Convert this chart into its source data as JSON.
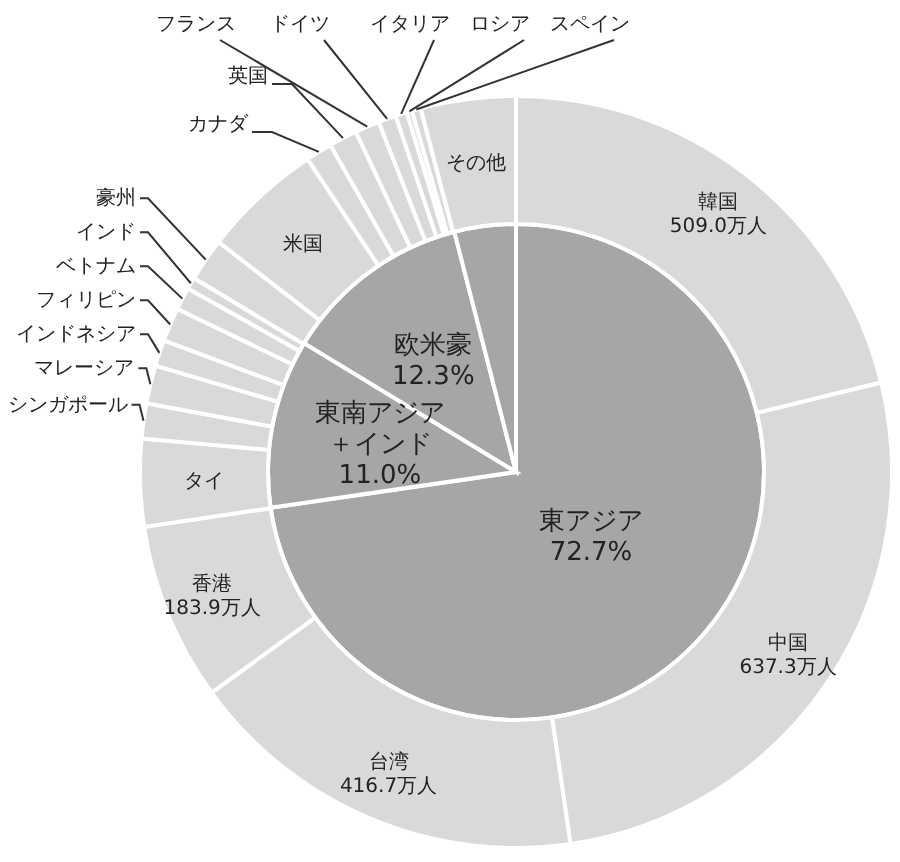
{
  "chart_data": [
    {
      "type": "pie",
      "categories": [
        "東アジア",
        "東南アジア＋インド",
        "欧米豪",
        null
      ],
      "values": [
        72.7,
        11.0,
        12.3,
        4.0
      ],
      "colors": [
        "#a6a6a6",
        "#a6a6a6",
        "#a6a6a6",
        "#a6a6a6"
      ],
      "value_labels": [
        "72.7%",
        "11.0%",
        "12.3%",
        null
      ]
    },
    {
      "type": "donut",
      "categories": [
        "韓国",
        "中国",
        "台湾",
        "香港",
        "タイ",
        "シンガポール",
        "マレーシア",
        "インドネシア",
        "フィリピン",
        "ベトナム",
        "インド",
        "豪州",
        "米国",
        "カナダ",
        "英国",
        "フランス",
        "ドイツ",
        "イタリア",
        "ロシア",
        "スペイン",
        "その他"
      ],
      "values": [
        509.0,
        637.3,
        416.7,
        183.9,
        90.2,
        36.2,
        39.4,
        27.1,
        34.8,
        23.4,
        12.3,
        44.5,
        124.3,
        27.3,
        29.2,
        25.3,
        18.3,
        11.9,
        5.5,
        9.2,
        98.1
      ],
      "colors": [
        "#d9d9d9",
        "#d9d9d9",
        "#d9d9d9",
        "#d9d9d9",
        "#d9d9d9",
        "#d9d9d9",
        "#d9d9d9",
        "#d9d9d9",
        "#d9d9d9",
        "#d9d9d9",
        "#d9d9d9",
        "#d9d9d9",
        "#d9d9d9",
        "#d9d9d9",
        "#d9d9d9",
        "#d9d9d9",
        "#d9d9d9",
        "#d9d9d9",
        "#d9d9d9",
        "#d9d9d9",
        "#d9d9d9"
      ],
      "value_labels": [
        "509.0万人",
        "637.3万人",
        "416.7万人",
        "183.9万人",
        null,
        null,
        null,
        null,
        null,
        null,
        null,
        null,
        null,
        null,
        null,
        null,
        null,
        null,
        null,
        null,
        null
      ]
    }
  ]
}
